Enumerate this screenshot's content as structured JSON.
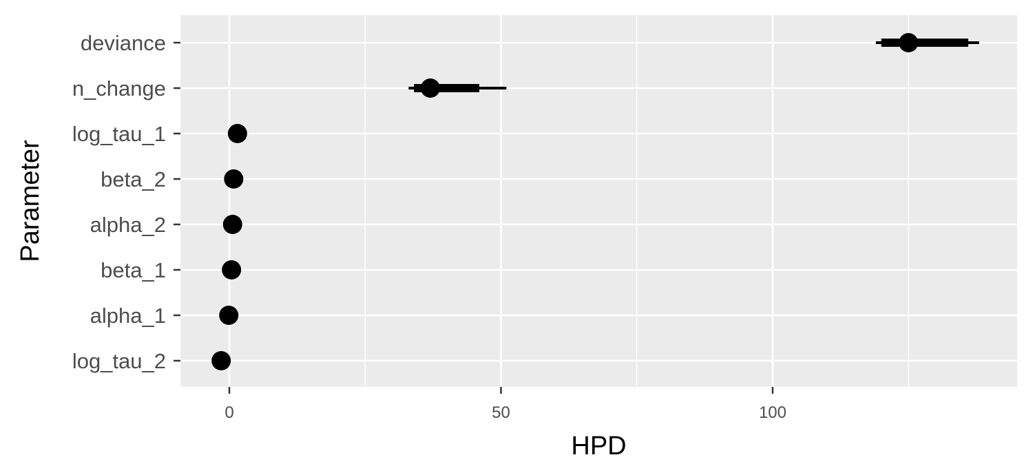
{
  "chart_data": {
    "type": "interval",
    "xlabel": "HPD",
    "ylabel": "Parameter",
    "xlim": [
      -9,
      145
    ],
    "x_ticks": [
      0,
      50,
      100
    ],
    "x_tick_labels": [
      "0",
      "50",
      "100"
    ],
    "grid": true,
    "legend": "none",
    "categories": [
      "deviance",
      "n_change",
      "log_tau_1",
      "beta_2",
      "alpha_2",
      "beta_1",
      "alpha_1",
      "log_tau_2"
    ],
    "points": [
      {
        "param": "deviance",
        "estimate": 125,
        "inner": [
          120,
          136
        ],
        "outer": [
          119,
          138
        ]
      },
      {
        "param": "n_change",
        "estimate": 37,
        "inner": [
          34,
          46
        ],
        "outer": [
          33,
          51
        ]
      },
      {
        "param": "log_tau_1",
        "estimate": 1.5,
        "inner": [
          1.2,
          1.8
        ],
        "outer": [
          1.0,
          2.0
        ]
      },
      {
        "param": "beta_2",
        "estimate": 0.8,
        "inner": [
          0.6,
          1.0
        ],
        "outer": [
          0.5,
          1.1
        ]
      },
      {
        "param": "alpha_2",
        "estimate": 0.6,
        "inner": [
          0.4,
          0.8
        ],
        "outer": [
          0.3,
          0.9
        ]
      },
      {
        "param": "beta_1",
        "estimate": 0.4,
        "inner": [
          0.2,
          0.6
        ],
        "outer": [
          0.1,
          0.7
        ]
      },
      {
        "param": "alpha_1",
        "estimate": -0.1,
        "inner": [
          -0.3,
          0.1
        ],
        "outer": [
          -0.4,
          0.2
        ]
      },
      {
        "param": "log_tau_2",
        "estimate": -1.5,
        "inner": [
          -1.8,
          -1.2
        ],
        "outer": [
          -2.0,
          -1.0
        ]
      }
    ]
  },
  "colors": {
    "panel_bg": "#ebebeb",
    "grid": "#ffffff",
    "marks": "#000000",
    "tick_text": "#4d4d4d",
    "tick_line": "#333333"
  }
}
